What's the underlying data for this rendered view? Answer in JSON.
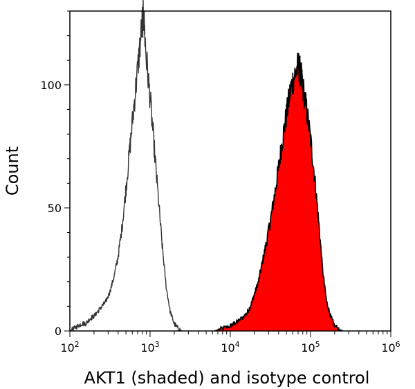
{
  "chart_data": {
    "type": "histogram",
    "title": "",
    "xlabel": "AKT1 (shaded) and isotype control",
    "ylabel": "Count",
    "x_scale": "log10",
    "xlim": [
      100,
      1000000
    ],
    "ylim": [
      0,
      130
    ],
    "x_ticks": [
      {
        "base": "10",
        "exp": "2",
        "value": 100
      },
      {
        "base": "10",
        "exp": "3",
        "value": 1000
      },
      {
        "base": "10",
        "exp": "4",
        "value": 10000
      },
      {
        "base": "10",
        "exp": "5",
        "value": 100000
      },
      {
        "base": "10",
        "exp": "6",
        "value": 1000000
      }
    ],
    "y_ticks": [
      {
        "label": "0",
        "value": 0
      },
      {
        "label": "50",
        "value": 50
      },
      {
        "label": "100",
        "value": 100
      }
    ],
    "series": [
      {
        "name": "isotype control",
        "style": "outline",
        "color": "#333333",
        "fill": "none",
        "points": [
          [
            2.0,
            0
          ],
          [
            2.05,
            1
          ],
          [
            2.1,
            2
          ],
          [
            2.15,
            3
          ],
          [
            2.2,
            3
          ],
          [
            2.25,
            5
          ],
          [
            2.3,
            6
          ],
          [
            2.35,
            8
          ],
          [
            2.4,
            10
          ],
          [
            2.45,
            12
          ],
          [
            2.5,
            16
          ],
          [
            2.55,
            22
          ],
          [
            2.6,
            30
          ],
          [
            2.65,
            42
          ],
          [
            2.7,
            58
          ],
          [
            2.75,
            75
          ],
          [
            2.8,
            92
          ],
          [
            2.85,
            108
          ],
          [
            2.9,
            125
          ],
          [
            2.92,
            128
          ],
          [
            2.95,
            112
          ],
          [
            3.0,
            95
          ],
          [
            3.05,
            75
          ],
          [
            3.1,
            55
          ],
          [
            3.15,
            35
          ],
          [
            3.2,
            18
          ],
          [
            3.25,
            8
          ],
          [
            3.3,
            3
          ],
          [
            3.35,
            1
          ],
          [
            3.4,
            0
          ]
        ]
      },
      {
        "name": "AKT1",
        "style": "filled",
        "color": "#000000",
        "fill": "#ff0000",
        "points": [
          [
            3.8,
            0
          ],
          [
            3.9,
            1
          ],
          [
            4.0,
            2
          ],
          [
            4.05,
            3
          ],
          [
            4.1,
            4
          ],
          [
            4.2,
            7
          ],
          [
            4.25,
            10
          ],
          [
            4.3,
            15
          ],
          [
            4.35,
            20
          ],
          [
            4.4,
            28
          ],
          [
            4.45,
            36
          ],
          [
            4.5,
            45
          ],
          [
            4.55,
            55
          ],
          [
            4.6,
            66
          ],
          [
            4.65,
            78
          ],
          [
            4.7,
            88
          ],
          [
            4.75,
            98
          ],
          [
            4.8,
            104
          ],
          [
            4.85,
            108
          ],
          [
            4.88,
            104
          ],
          [
            4.9,
            100
          ],
          [
            4.95,
            90
          ],
          [
            5.0,
            78
          ],
          [
            5.05,
            63
          ],
          [
            5.1,
            45
          ],
          [
            5.15,
            25
          ],
          [
            5.2,
            12
          ],
          [
            5.25,
            6
          ],
          [
            5.3,
            2
          ],
          [
            5.4,
            0
          ]
        ]
      }
    ]
  }
}
